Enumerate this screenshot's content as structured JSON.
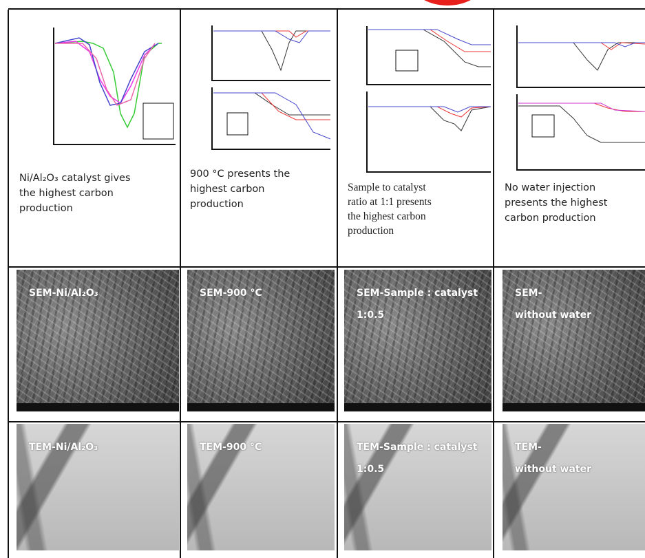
{
  "captions": [
    [
      "Ni/Al₂O₃ catalyst gives",
      "the highest carbon",
      "production"
    ],
    [
      "900 °C presents the",
      "highest carbon",
      "production"
    ],
    [
      "Sample to catalyst",
      "ratio at 1:1 presents",
      "the highest carbon",
      "production"
    ],
    [
      "No water injection",
      "presents the highest",
      "carbon production"
    ]
  ],
  "sem_labels": [
    [
      "SEM-Ni/Al₂O₃"
    ],
    [
      "SEM-900 °C"
    ],
    [
      "SEM-Sample : catalyst",
      "1:0.5"
    ],
    [
      "SEM-",
      "without water"
    ]
  ],
  "tem_labels": [
    [
      "TEM-Ni/Al₂O₃"
    ],
    [
      "TEM-900 °C"
    ],
    [
      "TEM-Sample : catalyst",
      "1:0.5"
    ],
    [
      "TEM-",
      "without water"
    ]
  ]
}
